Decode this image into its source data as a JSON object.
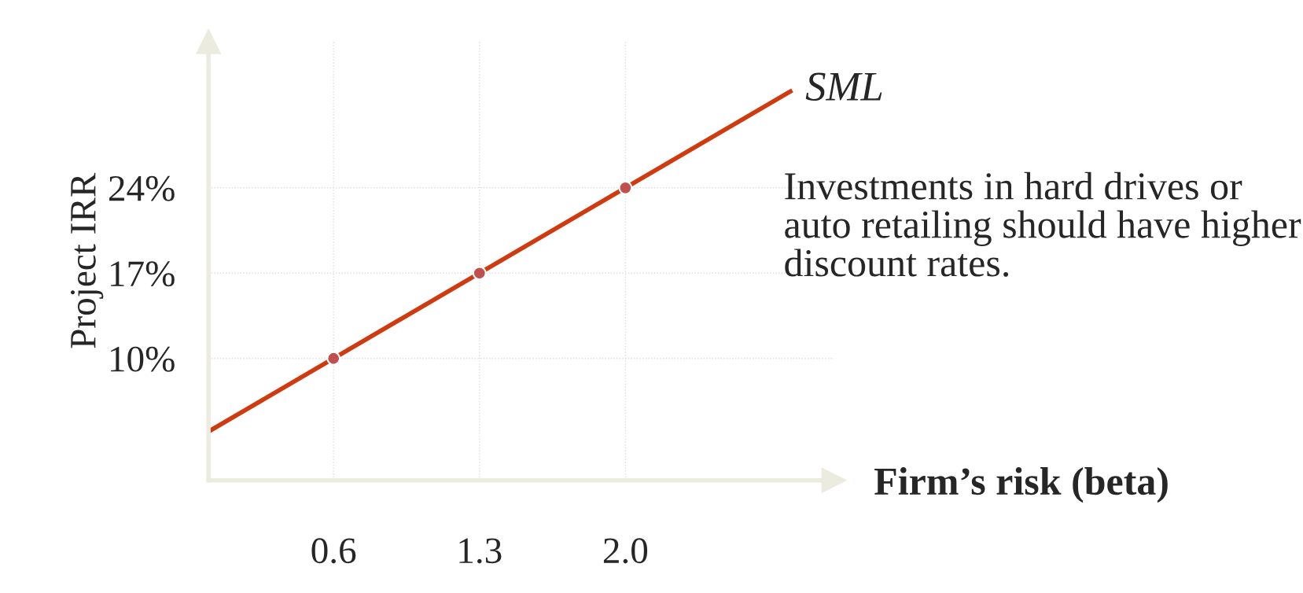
{
  "chart_data": {
    "type": "line",
    "xlabel": "Firm’s risk (beta)",
    "ylabel": "Project IRR",
    "xlim": [
      0,
      3.0
    ],
    "ylim": [
      0,
      36
    ],
    "xticks": [
      {
        "value": 0.6,
        "label": "0.6"
      },
      {
        "value": 1.3,
        "label": "1.3"
      },
      {
        "value": 2.0,
        "label": "2.0"
      }
    ],
    "yticks": [
      {
        "value": 10,
        "label": "10%"
      },
      {
        "value": 17,
        "label": "17%"
      },
      {
        "value": 24,
        "label": "24%"
      }
    ],
    "series": [
      {
        "name": "SML",
        "type": "line",
        "color": "#d03a0f",
        "x": [
          0,
          2.8
        ],
        "values": [
          4,
          32
        ]
      },
      {
        "type": "scatter",
        "color": "#c0504d",
        "x": [
          0.6,
          1.3,
          2.0
        ],
        "values": [
          10,
          17,
          24
        ]
      }
    ],
    "annotations": [
      "Investments in hard drives or auto retailing should have higher discount rates."
    ],
    "grid": true,
    "legend": false
  }
}
